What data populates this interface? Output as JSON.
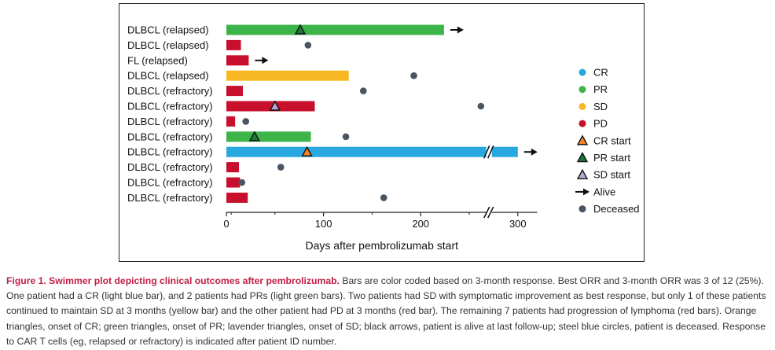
{
  "chart_data": {
    "type": "swimmer",
    "xlabel": "Days after pembrolizumab start",
    "xlim": [
      0,
      320
    ],
    "xticks": [
      0,
      100,
      200,
      300
    ],
    "axis_break_at": 270,
    "colors": {
      "CR": "#29a8e0",
      "PR": "#3cb44a",
      "SD": "#f7b823",
      "PD": "#c8102e",
      "CR_start": "#f58220",
      "PR_start": "#1b7a3a",
      "SD_start": "#b7a6d8",
      "deceased": "#4a5562"
    },
    "patients": [
      {
        "label": "DLBCL (relapsed)",
        "response": "PR",
        "duration": 224,
        "marker": {
          "type": "PR start",
          "day": 76
        },
        "alive": true
      },
      {
        "label": "DLBCL (relapsed)",
        "response": "PD",
        "duration": 15,
        "deceased_day": 84
      },
      {
        "label": "FL      (relapsed)",
        "response": "PD",
        "duration": 23,
        "alive": true
      },
      {
        "label": "DLBCL (relapsed)",
        "response": "SD",
        "duration": 126,
        "deceased_day": 193
      },
      {
        "label": "DLBCL (refractory)",
        "response": "PD",
        "duration": 17,
        "deceased_day": 141
      },
      {
        "label": "DLBCL (refractory)",
        "response": "PD",
        "duration": 91,
        "marker": {
          "type": "SD start",
          "day": 50
        },
        "deceased_day": 262
      },
      {
        "label": "DLBCL (refractory)",
        "response": "PD",
        "duration": 9,
        "deceased_day": 20
      },
      {
        "label": "DLBCL (refractory)",
        "response": "PR",
        "duration": 87,
        "marker": {
          "type": "PR start",
          "day": 29
        },
        "deceased_day": 123
      },
      {
        "label": "DLBCL (refractory)",
        "response": "CR",
        "duration": 300,
        "marker": {
          "type": "CR start",
          "day": 83
        },
        "alive": true
      },
      {
        "label": "DLBCL (refractory)",
        "response": "PD",
        "duration": 13,
        "deceased_day": 56
      },
      {
        "label": "DLBCL (refractory)",
        "response": "PD",
        "duration": 14,
        "deceased_day": 16
      },
      {
        "label": "DLBCL (refractory)",
        "response": "PD",
        "duration": 22,
        "deceased_day": 162
      }
    ],
    "legend": [
      {
        "key": "CR",
        "label": "CR",
        "symbol": "dot"
      },
      {
        "key": "PR",
        "label": "PR",
        "symbol": "dot"
      },
      {
        "key": "SD",
        "label": "SD",
        "symbol": "dot"
      },
      {
        "key": "PD",
        "label": "PD",
        "symbol": "dot"
      },
      {
        "key": "CR_start",
        "label": "CR start",
        "symbol": "triangle"
      },
      {
        "key": "PR_start",
        "label": "PR start",
        "symbol": "triangle"
      },
      {
        "key": "SD_start",
        "label": "SD start",
        "symbol": "triangle"
      },
      {
        "key": "alive",
        "label": "Alive",
        "symbol": "arrow"
      },
      {
        "key": "deceased",
        "label": "Deceased",
        "symbol": "dot"
      }
    ]
  },
  "caption": {
    "title": "Figure 1. Swimmer plot depicting clinical outcomes after pembrolizumab.",
    "body": " Bars are color coded based on 3-month response. Best ORR and 3-month ORR was 3 of 12 (25%). One patient had a CR (light blue bar), and 2 patients had PRs (light green bars). Two patients had SD with symptomatic improvement as best response, but only 1 of these patients continued to maintain SD at 3 months (yellow bar) and the other patient had PD at 3 months (red bar). The remaining 7 patients had progression of lymphoma (red bars). Orange triangles, onset of CR; green triangles, onset of PR; lavender triangles, onset of SD; black arrows, patient is alive at last follow-up; steel blue circles, patient is deceased. Response to CAR T cells (eg, relapsed or refractory) is indicated after patient ID number."
  }
}
